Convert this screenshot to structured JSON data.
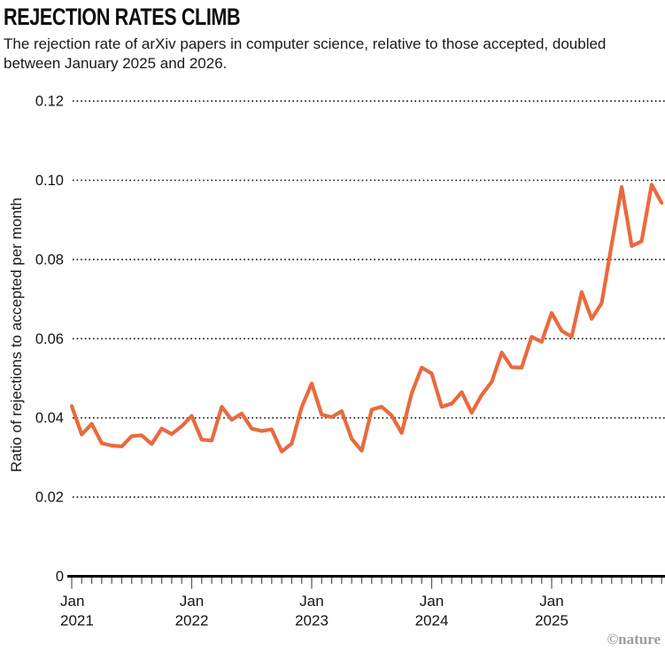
{
  "header": {
    "title": "REJECTION RATES CLIMB",
    "subtitle": "The rejection rate of arXiv papers in computer science, relative to those accepted, doubled between January 2025 and 2026."
  },
  "chart_data": {
    "type": "line",
    "title": "REJECTION RATES CLIMB",
    "xlabel": "",
    "ylabel": "Ratio of rejections to accepted per month",
    "ylim": [
      0,
      0.12
    ],
    "grid": "horizontal-dotted",
    "legend": "none",
    "line_color": "#e96a3f",
    "x_start": "Jan 2021",
    "x_end": "Dec 2025",
    "points_per_year": 12,
    "y_ticks": [
      0,
      0.02,
      0.04,
      0.06,
      0.08,
      0.1,
      0.12
    ],
    "y_tick_labels": [
      "0",
      "0.02",
      "0.04",
      "0.06",
      "0.08",
      "0.10",
      "0.12"
    ],
    "x_ticks": [
      {
        "line1": "Jan",
        "line2": "2021"
      },
      {
        "line1": "Jan",
        "line2": "2022"
      },
      {
        "line1": "Jan",
        "line2": "2023"
      },
      {
        "line1": "Jan",
        "line2": "2024"
      },
      {
        "line1": "Jan",
        "line2": "2025"
      }
    ],
    "series": [
      {
        "name": "Ratio of rejections to accepted per month",
        "values": [
          0.043,
          0.0358,
          0.0385,
          0.0336,
          0.033,
          0.0328,
          0.0354,
          0.0356,
          0.0334,
          0.0373,
          0.0359,
          0.0379,
          0.0405,
          0.0345,
          0.0343,
          0.0428,
          0.0395,
          0.0411,
          0.0373,
          0.0367,
          0.0371,
          0.0315,
          0.0335,
          0.0427,
          0.0487,
          0.0408,
          0.0402,
          0.0417,
          0.0347,
          0.0317,
          0.0421,
          0.0428,
          0.0406,
          0.0362,
          0.0462,
          0.0527,
          0.0512,
          0.0428,
          0.0436,
          0.0465,
          0.0413,
          0.0458,
          0.0491,
          0.0565,
          0.0528,
          0.0527,
          0.0605,
          0.0592,
          0.0665,
          0.062,
          0.0605,
          0.0718,
          0.065,
          0.069,
          0.0838,
          0.0983,
          0.0834,
          0.0846,
          0.0989,
          0.0943
        ]
      }
    ]
  },
  "footer": {
    "credit": "©nature"
  }
}
